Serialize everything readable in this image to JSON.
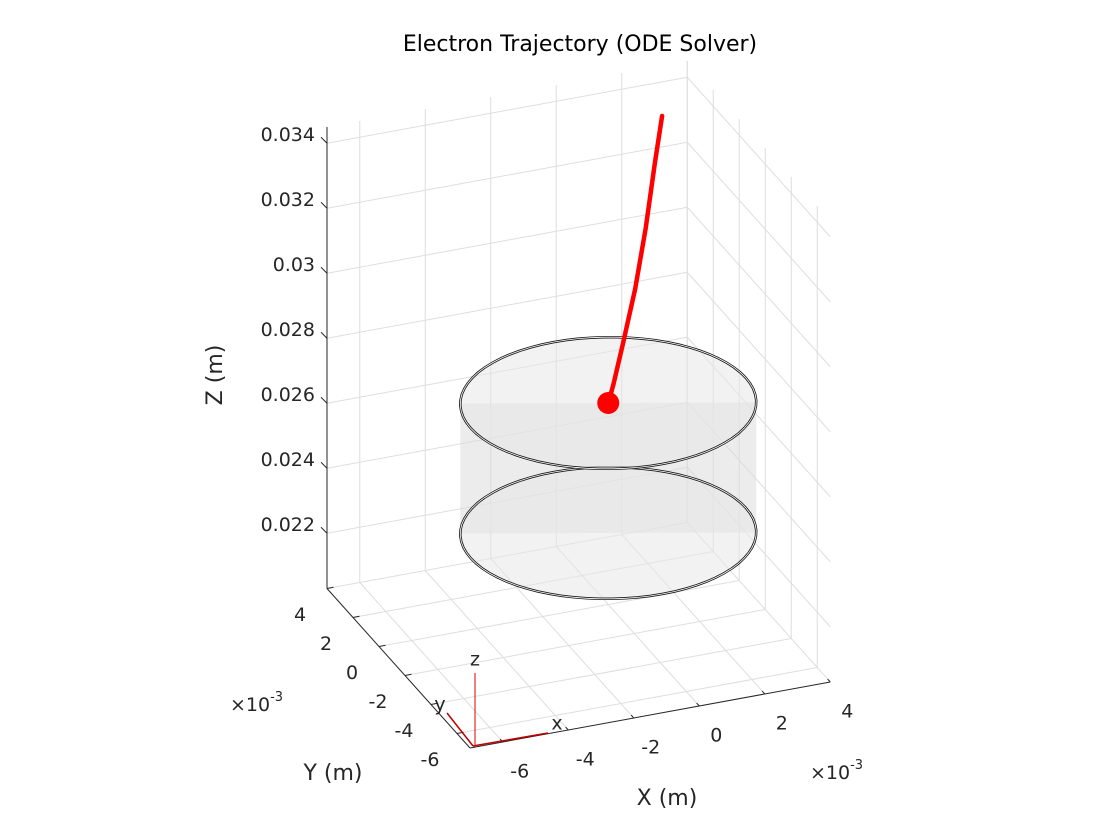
{
  "chart_data": {
    "type": "line3d",
    "title": "Electron Trajectory (ODE Solver)",
    "xlabel": "X (m)",
    "ylabel": "Y (m)",
    "zlabel": "Z (m)",
    "xlim": [
      -0.007,
      0.004
    ],
    "ylim": [
      -0.007,
      0.004
    ],
    "zlim": [
      0.0203,
      0.0345
    ],
    "xticks": [
      {
        "value": -0.006,
        "label": "-6"
      },
      {
        "value": -0.004,
        "label": "-4"
      },
      {
        "value": -0.002,
        "label": "-2"
      },
      {
        "value": 0,
        "label": "0"
      },
      {
        "value": 0.002,
        "label": "2"
      },
      {
        "value": 0.004,
        "label": "4"
      }
    ],
    "yticks": [
      {
        "value": -0.006,
        "label": "-6"
      },
      {
        "value": -0.004,
        "label": "-4"
      },
      {
        "value": -0.002,
        "label": "-2"
      },
      {
        "value": 0,
        "label": "0"
      },
      {
        "value": 0.002,
        "label": "2"
      },
      {
        "value": 0.004,
        "label": "4"
      }
    ],
    "zticks": [
      0.022,
      0.024,
      0.026,
      0.028,
      0.03,
      0.032,
      0.034
    ],
    "x_exponent": {
      "base": "×10",
      "power": "-3"
    },
    "y_exponent": {
      "base": "×10",
      "power": "-3"
    },
    "grid": true,
    "series": [
      {
        "color": "#ff0000",
        "x": [
          0.0022,
          0.0019,
          0.0015,
          0.0011,
          0.0006,
          0.0002,
          0
        ],
        "y": [
          0.0014,
          0.0012,
          0.0009,
          0.0007,
          0.0004,
          0.0001,
          0
        ],
        "z": [
          0.0343,
          0.033,
          0.0312,
          0.0295,
          0.028,
          0.027,
          0.0265
        ]
      }
    ],
    "cylinder": {
      "radius": 0.0042,
      "center": [
        0,
        0
      ],
      "zlim": [
        0.0225,
        0.0265
      ]
    },
    "orientation_axes": {
      "labels": [
        "x",
        "y",
        "z"
      ]
    }
  }
}
